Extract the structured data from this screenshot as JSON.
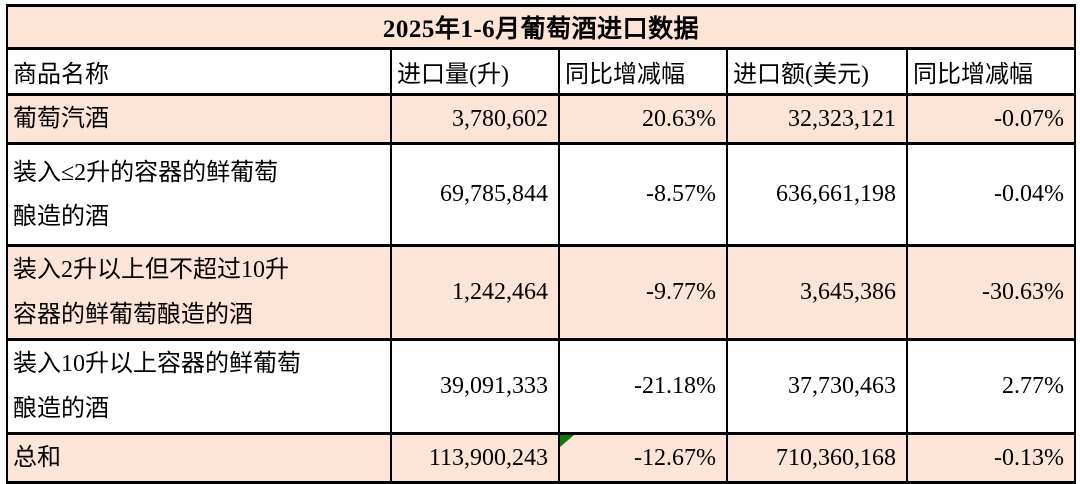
{
  "title": "2025年1-6月葡萄酒进口数据",
  "table": {
    "columns": [
      "商品名称",
      "进口量(升)",
      "同比增减幅",
      "进口额(美元)",
      "同比增减幅"
    ],
    "rows": [
      {
        "name_lines": [
          "葡萄汽酒"
        ],
        "volume": "3,780,602",
        "volume_yoy": "20.63%",
        "value": "32,323,121",
        "value_yoy": "-0.07%",
        "comment_flag": false
      },
      {
        "name_lines": [
          "装入≤2升的容器的鲜葡萄",
          "酿造的酒"
        ],
        "volume": "69,785,844",
        "volume_yoy": "-8.57%",
        "value": "636,661,198",
        "value_yoy": "-0.04%",
        "comment_flag": false
      },
      {
        "name_lines": [
          "装入2升以上但不超过10升",
          "容器的鲜葡萄酿造的酒"
        ],
        "volume": "1,242,464",
        "volume_yoy": "-9.77%",
        "value": "3,645,386",
        "value_yoy": "-30.63%",
        "comment_flag": false
      },
      {
        "name_lines": [
          "装入10升以上容器的鲜葡萄",
          "酿造的酒"
        ],
        "volume": "39,091,333",
        "volume_yoy": "-21.18%",
        "value": "37,730,463",
        "value_yoy": "2.77%",
        "comment_flag": false
      },
      {
        "name_lines": [
          "总和"
        ],
        "volume": "113,900,243",
        "volume_yoy": "-12.67%",
        "value": "710,360,168",
        "value_yoy": "-0.13%",
        "comment_flag": true
      }
    ]
  },
  "icons": {
    "comment_flag": "green-corner-triangle-icon"
  },
  "colors": {
    "row_fill_peach": "#fce4d6",
    "row_fill_white": "#ffffff",
    "border_black": "#000000",
    "comment_flag_green": "#0f7b0f",
    "text": "#000000"
  },
  "chart_data": {
    "type": "table",
    "title": "2025年1-6月葡萄酒进口数据",
    "columns": [
      "商品名称",
      "进口量(升)",
      "同比增减幅",
      "进口额(美元)",
      "同比增减幅"
    ],
    "rows": [
      [
        "葡萄汽酒",
        "3,780,602",
        "20.63%",
        "32,323,121",
        "-0.07%"
      ],
      [
        "装入≤2升的容器的鲜葡萄酿造的酒",
        "69,785,844",
        "-8.57%",
        "636,661,198",
        "-0.04%"
      ],
      [
        "装入2升以上但不超过10升容器的鲜葡萄酿造的酒",
        "1,242,464",
        "-9.77%",
        "3,645,386",
        "-30.63%"
      ],
      [
        "装入10升以上容器的鲜葡萄酿造的酒",
        "39,091,333",
        "-21.18%",
        "37,730,463",
        "2.77%"
      ],
      [
        "总和",
        "113,900,243",
        "-12.67%",
        "710,360,168",
        "-0.13%"
      ]
    ],
    "notes": "Excel-style green comment flag in top-left corner of 总和 row 同比增减幅(进口量) cell; rows alternate peach #fce4d6 and white fills; grid on (black borders)."
  }
}
